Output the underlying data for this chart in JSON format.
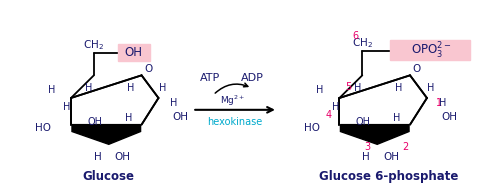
{
  "bg_color": "#ffffff",
  "dark_blue": "#1a1a6e",
  "pink_label": "#e8006a",
  "cyan_label": "#00aacc",
  "highlight_pink": "#f9c6d0",
  "glucose_label": "Glucose",
  "g6p_label": "Glucose 6-phosphate",
  "hexokinase_label": "hexokinase"
}
